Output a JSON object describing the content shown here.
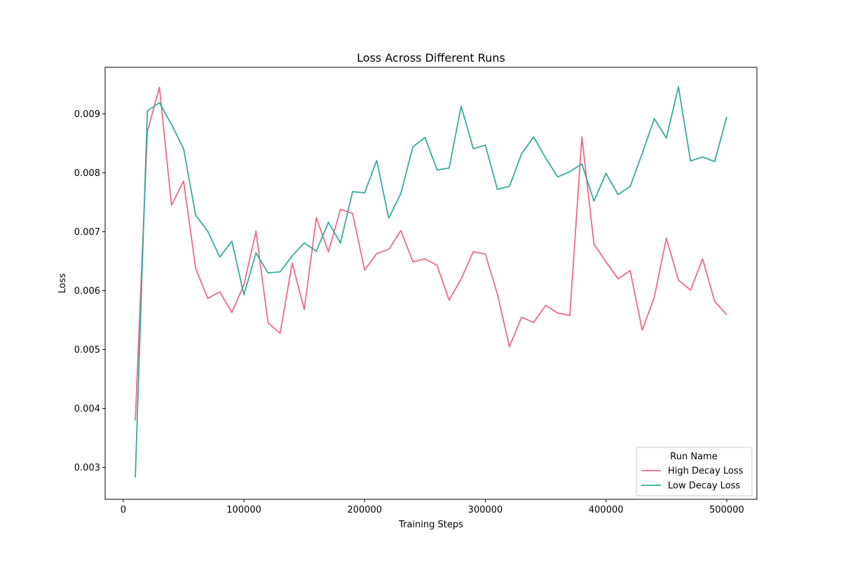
{
  "chart_data": {
    "type": "line",
    "title": "Loss Across Different Runs",
    "xlabel": "Training Steps",
    "ylabel": "Loss",
    "xlim": [
      -15000,
      525000
    ],
    "ylim": [
      0.00246,
      0.00979
    ],
    "x_ticks": [
      0,
      100000,
      200000,
      300000,
      400000,
      500000
    ],
    "x_tick_labels": [
      "0",
      "100000",
      "200000",
      "300000",
      "400000",
      "500000"
    ],
    "y_ticks": [
      0.003,
      0.004,
      0.005,
      0.006,
      0.007,
      0.008,
      0.009
    ],
    "y_tick_labels": [
      "0.003",
      "0.004",
      "0.005",
      "0.006",
      "0.007",
      "0.008",
      "0.009"
    ],
    "grid": false,
    "legend": {
      "title": "Run Name",
      "placement": "lower-right"
    },
    "x": [
      10000,
      20000,
      30000,
      40000,
      50000,
      60000,
      70000,
      80000,
      90000,
      100000,
      110000,
      120000,
      130000,
      140000,
      150000,
      160000,
      170000,
      180000,
      190000,
      200000,
      210000,
      220000,
      230000,
      240000,
      250000,
      260000,
      270000,
      280000,
      290000,
      300000,
      310000,
      320000,
      330000,
      340000,
      350000,
      360000,
      370000,
      380000,
      390000,
      400000,
      410000,
      420000,
      430000,
      440000,
      450000,
      460000,
      470000,
      480000,
      490000,
      500000
    ],
    "series": [
      {
        "name": "High Decay Loss",
        "color": "#ee6a85",
        "values": [
          0.0038,
          0.0087,
          0.00945,
          0.00745,
          0.00786,
          0.00638,
          0.00587,
          0.00598,
          0.00563,
          0.0061,
          0.00701,
          0.00545,
          0.00528,
          0.00647,
          0.00568,
          0.00724,
          0.00666,
          0.00738,
          0.00731,
          0.00635,
          0.00663,
          0.0067,
          0.00702,
          0.00649,
          0.00654,
          0.00643,
          0.00584,
          0.0062,
          0.00666,
          0.00662,
          0.00594,
          0.00505,
          0.00555,
          0.00546,
          0.00575,
          0.00562,
          0.00558,
          0.00861,
          0.00679,
          0.00649,
          0.0062,
          0.00634,
          0.00533,
          0.00589,
          0.00689,
          0.00618,
          0.00601,
          0.00654,
          0.00582,
          0.00559
        ]
      },
      {
        "name": "Low Decay Loss",
        "color": "#35aaa1",
        "values": [
          0.00283,
          0.00905,
          0.00919,
          0.00882,
          0.00841,
          0.00728,
          0.00701,
          0.00657,
          0.00684,
          0.00593,
          0.00664,
          0.0063,
          0.00632,
          0.00659,
          0.00681,
          0.00667,
          0.00716,
          0.00681,
          0.00768,
          0.00766,
          0.00821,
          0.00723,
          0.00765,
          0.00844,
          0.0086,
          0.00805,
          0.00808,
          0.00913,
          0.00841,
          0.00847,
          0.00772,
          0.00777,
          0.00832,
          0.00861,
          0.00825,
          0.00793,
          0.00802,
          0.00815,
          0.00752,
          0.00799,
          0.00763,
          0.00777,
          0.00833,
          0.00892,
          0.00859,
          0.00946,
          0.0082,
          0.00827,
          0.00819,
          0.00895
        ]
      }
    ]
  }
}
